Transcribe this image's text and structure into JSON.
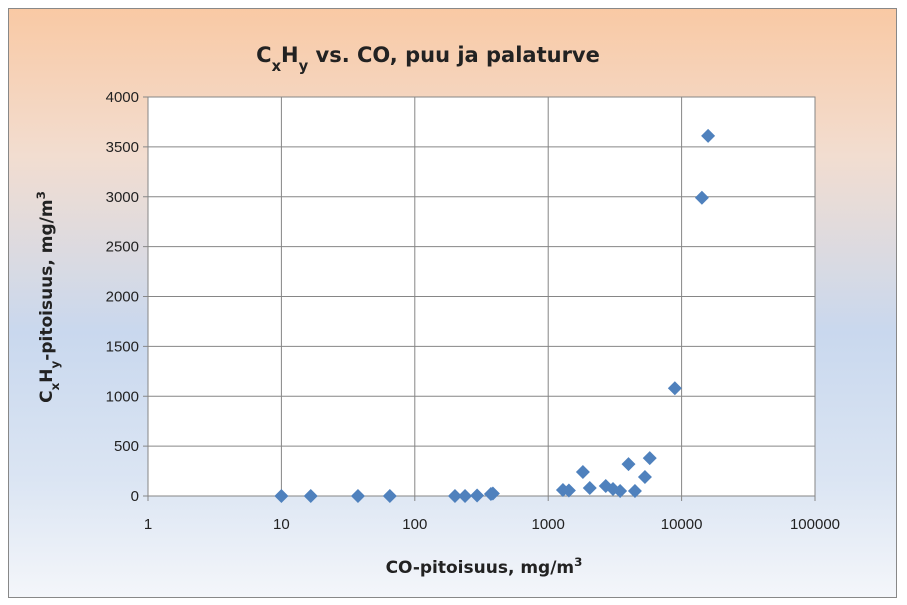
{
  "chart_data": {
    "type": "scatter",
    "title": [
      {
        "text": "C"
      },
      {
        "text": "x",
        "shift": "sub"
      },
      {
        "text": "H"
      },
      {
        "text": "y",
        "shift": "sub"
      },
      {
        "text": " vs. CO, puu ja palaturve"
      }
    ],
    "xlabel": [
      {
        "text": "CO-pitoisuus, mg/m"
      },
      {
        "text": "3",
        "shift": "super"
      }
    ],
    "ylabel": [
      {
        "text": "C"
      },
      {
        "text": "x",
        "shift": "sub"
      },
      {
        "text": "H"
      },
      {
        "text": "y",
        "shift": "sub"
      },
      {
        "text": "-pitoisuus, mg/m"
      },
      {
        "text": "3",
        "shift": "super"
      }
    ],
    "xscale": "log",
    "xlim": [
      1,
      100000
    ],
    "xticks": [
      1,
      10,
      100,
      1000,
      10000,
      100000
    ],
    "ylim": [
      0,
      4000
    ],
    "yticks": [
      0,
      500,
      1000,
      1500,
      2000,
      2500,
      3000,
      3500,
      4000
    ],
    "grid": true,
    "color": "#4f81bd",
    "x": [
      10,
      16.6,
      37.5,
      65,
      200,
      238,
      293,
      372,
      385,
      1290,
      1430,
      1820,
      2050,
      2700,
      3060,
      3460,
      4000,
      4470,
      5310,
      5770,
      8900,
      14200,
      15800
    ],
    "y": [
      0,
      0,
      0,
      0,
      0,
      0,
      5,
      20,
      25,
      60,
      55,
      240,
      80,
      100,
      70,
      50,
      320,
      50,
      190,
      380,
      1080,
      2990,
      3610
    ]
  }
}
